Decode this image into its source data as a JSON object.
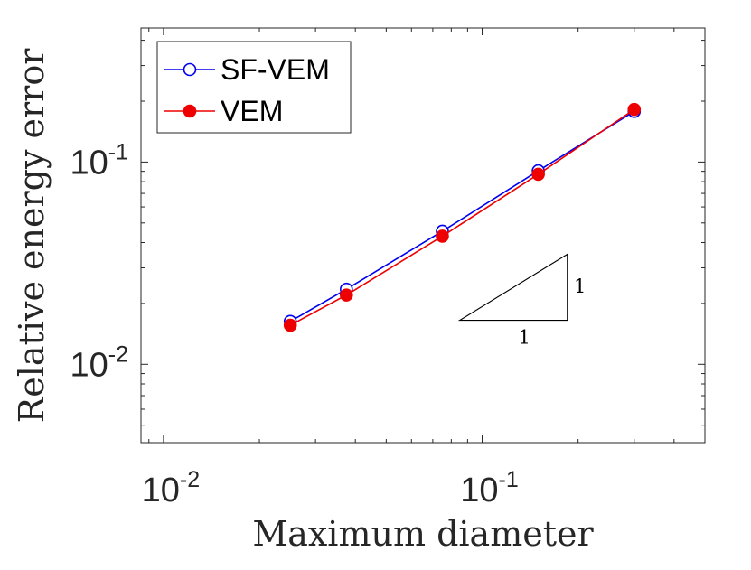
{
  "chart_data": {
    "type": "line",
    "xscale": "log",
    "yscale": "log",
    "xlabel": "Maximum diameter",
    "ylabel": "Relative energy error",
    "xlim": [
      0.0085,
      0.5
    ],
    "ylim": [
      0.0041,
      0.46
    ],
    "x_ticks": [
      {
        "value": 0.01,
        "base": "10",
        "exp": "-2"
      },
      {
        "value": 0.1,
        "base": "10",
        "exp": "-1"
      }
    ],
    "y_ticks": [
      {
        "value": 0.01,
        "base": "10",
        "exp": "-2"
      },
      {
        "value": 0.1,
        "base": "10",
        "exp": "-1"
      }
    ],
    "series": [
      {
        "name": "SF-VEM",
        "color": "#0000ee",
        "marker": "open-circle",
        "x": [
          0.025,
          0.0375,
          0.075,
          0.15,
          0.3
        ],
        "values": [
          0.0163,
          0.0235,
          0.0455,
          0.0905,
          0.178
        ]
      },
      {
        "name": "VEM",
        "color": "#ee0000",
        "marker": "filled-circle",
        "x": [
          0.025,
          0.0375,
          0.075,
          0.15,
          0.3
        ],
        "values": [
          0.0156,
          0.022,
          0.043,
          0.087,
          0.182
        ]
      }
    ],
    "legend_position": "top-left",
    "slope_triangle": {
      "horizontal_label": "1",
      "vertical_label": "1",
      "x": [
        0.085,
        0.185
      ],
      "y": [
        0.0165,
        0.035
      ]
    },
    "grid": false
  }
}
